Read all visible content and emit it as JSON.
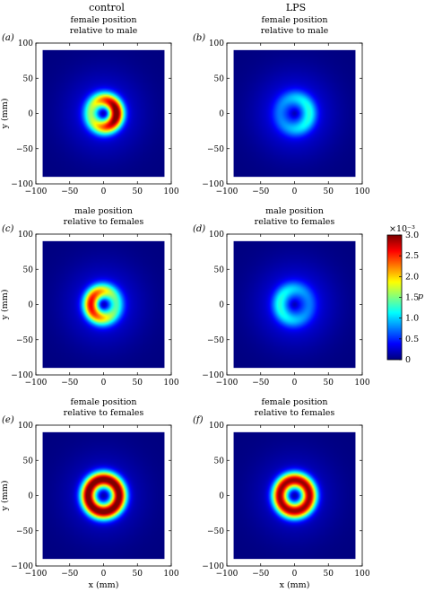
{
  "chart_data": {
    "type": "heatmap",
    "column_titles": [
      "control",
      "LPS"
    ],
    "colorbar": {
      "label": "p",
      "exponent_label": "×10⁻³",
      "range": [
        0,
        3.0
      ],
      "ticks": [
        0,
        0.5,
        1.0,
        1.5,
        2.0,
        2.5,
        3.0
      ],
      "tick_labels": [
        "0",
        "0.5",
        "1.0",
        "1.5",
        "2.0",
        "2.5",
        "3.0"
      ]
    },
    "x_axis": {
      "label": "x (mm)",
      "range": [
        -100,
        100
      ],
      "ticks": [
        -100,
        -50,
        0,
        50,
        100
      ],
      "tick_labels": [
        "−100",
        "−50",
        "0",
        "50",
        "100"
      ]
    },
    "y_axis": {
      "label": "y (mm)",
      "range": [
        -100,
        100
      ],
      "ticks": [
        100,
        50,
        0,
        -50,
        -100
      ],
      "tick_labels": [
        "100",
        "50",
        "0",
        "−50",
        "−100"
      ]
    },
    "data_extent_mm": [
      -90,
      90
    ],
    "panels": [
      {
        "tag": "(a)",
        "title": [
          "female position",
          "relative to male"
        ],
        "column": "control",
        "ring": {
          "radius_mm": 19,
          "peak": 3.0,
          "background": 0.35,
          "crescent_center_deg": 0
        }
      },
      {
        "tag": "(b)",
        "title": [
          "female position",
          "relative to male"
        ],
        "column": "LPS",
        "ring": {
          "radius_mm": 22,
          "peak": 1.05,
          "background": 0.4,
          "crescent_center_deg": 0
        }
      },
      {
        "tag": "(c)",
        "title": [
          "male position",
          "relative to females"
        ],
        "column": "control",
        "ring": {
          "radius_mm": 19,
          "peak": 2.5,
          "background": 0.35,
          "crescent_center_deg": 180
        }
      },
      {
        "tag": "(d)",
        "title": [
          "male position",
          "relative to females"
        ],
        "column": "LPS",
        "ring": {
          "radius_mm": 22,
          "peak": 1.05,
          "background": 0.4,
          "crescent_center_deg": 180
        }
      },
      {
        "tag": "(e)",
        "title": [
          "female position",
          "relative to females"
        ],
        "column": "control",
        "ring": {
          "radius_mm": 23,
          "peak": 3.0,
          "background": 0.3,
          "crescent_center_deg": null
        }
      },
      {
        "tag": "(f)",
        "title": [
          "female position",
          "relative to females"
        ],
        "column": "LPS",
        "ring": {
          "radius_mm": 22,
          "peak": 2.8,
          "background": 0.3,
          "crescent_center_deg": null
        }
      }
    ]
  }
}
